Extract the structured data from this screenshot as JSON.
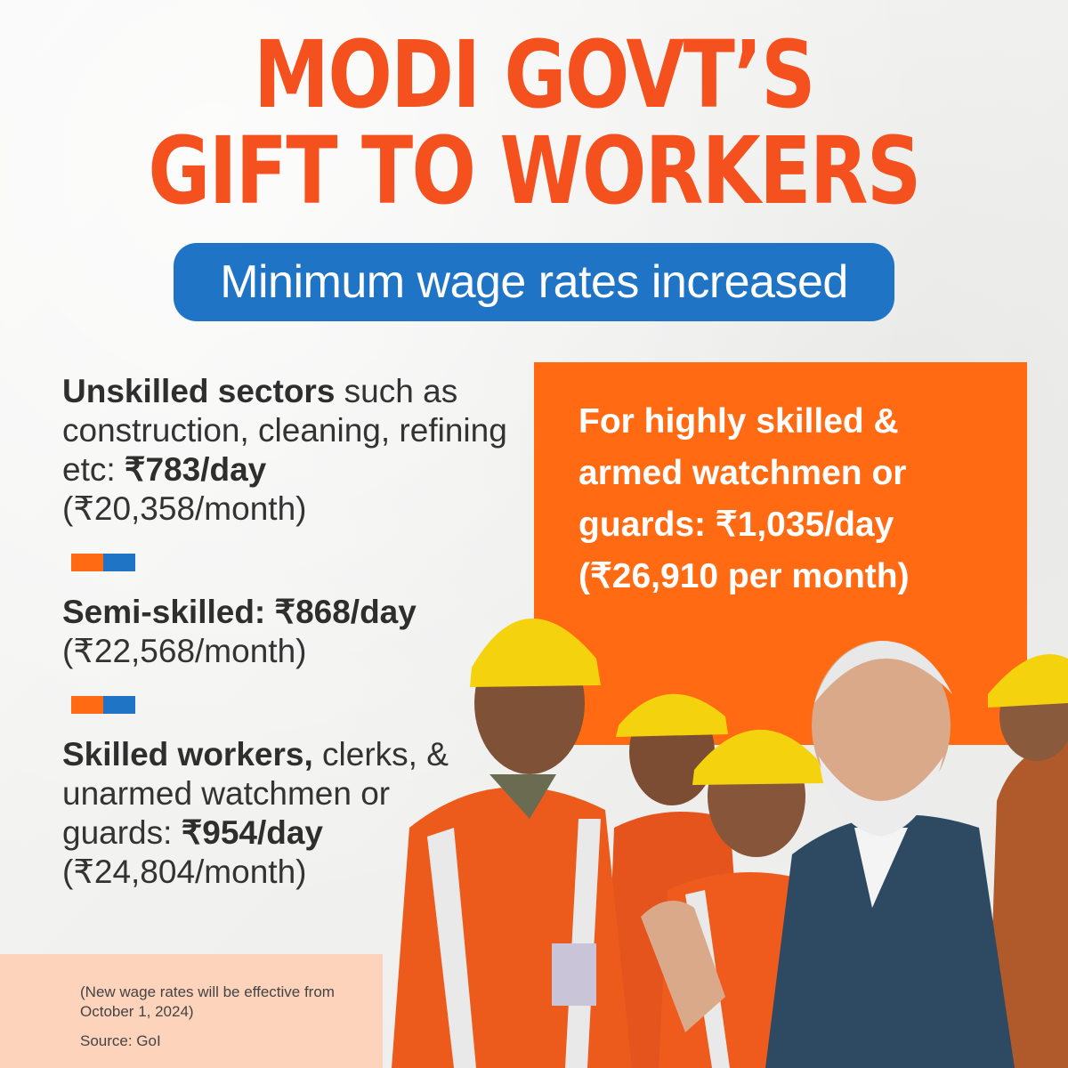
{
  "headline": {
    "line1": "MODI GOVT’S",
    "line2": "GIFT TO WORKERS"
  },
  "subtitle": "Minimum wage rates increased",
  "tiers": [
    {
      "bold": "Unskilled sectors",
      "text": " such as construction, cleaning, refining etc:  ",
      "rate": "₹783/day",
      "monthly": "(₹20,358/month)"
    },
    {
      "bold": "Semi-skilled: ₹868/day",
      "text": "",
      "rate": "",
      "monthly": "(₹22,568/month)"
    },
    {
      "bold": "Skilled workers,",
      "text": " clerks, & unarmed watchmen or guards: ",
      "rate": "₹954/day",
      "monthly": "(₹24,804/month)"
    }
  ],
  "highlight": "For highly skilled & armed watchmen or guards: ₹1,035/day (₹26,910 per month)",
  "footnote": "(New wage rates will be effective from October 1, 2024)",
  "source": "Source: GoI",
  "colors": {
    "accent_orange": "#ff6a13",
    "headline_orange": "#f4511e",
    "accent_blue": "#1f74c6",
    "peach": "#fdd3bc"
  }
}
